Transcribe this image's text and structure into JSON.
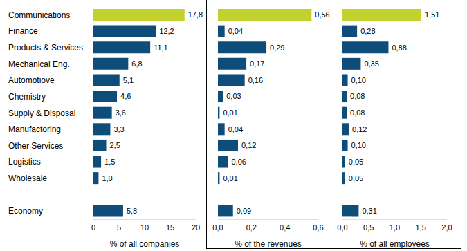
{
  "chart_data": [
    {
      "type": "bar",
      "orientation": "horizontal",
      "data_labels": true,
      "grid": false,
      "x_label": "% of all companies",
      "categories": [
        "Communications",
        "Finance",
        "Products & Services",
        "Mechanical Eng.",
        "Automotiove",
        "Chemistry",
        "Supply & Disposal",
        "Manufactoring",
        "Other Services",
        "Logistics",
        "Wholesale",
        null,
        "Economy"
      ],
      "values": [
        17.8,
        12.2,
        11.1,
        6.8,
        5.1,
        4.6,
        3.6,
        3.3,
        2.5,
        1.5,
        1.0,
        null,
        5.8
      ],
      "value_labels": [
        "17,8",
        "12,2",
        "11,1",
        "6,8",
        "5,1",
        "4,6",
        "3,6",
        "3,3",
        "2,5",
        "1,5",
        "1,0",
        null,
        "5,8"
      ],
      "colors": [
        "#c3d12f",
        "#0e4d7a",
        "#0e4d7a",
        "#0e4d7a",
        "#0e4d7a",
        "#0e4d7a",
        "#0e4d7a",
        "#0e4d7a",
        "#0e4d7a",
        "#0e4d7a",
        "#0e4d7a",
        null,
        "#0e4d7a"
      ],
      "xlim": [
        0,
        20
      ],
      "xticks": [
        0,
        5,
        10,
        15,
        20
      ]
    },
    {
      "type": "bar",
      "orientation": "horizontal",
      "data_labels": true,
      "grid": false,
      "tick_labels": "x",
      "x_label": "% of the revenues",
      "categories": [
        "Communications",
        "Finance",
        "Products & Services",
        "Mechanical Eng.",
        "Automotiove",
        "Chemistry",
        "Supply & Disposal",
        "Manufactoring",
        "Other Services",
        "Logistics",
        "Wholesale",
        null,
        "Economy"
      ],
      "values": [
        0.56,
        0.04,
        0.29,
        0.17,
        0.16,
        0.03,
        0.01,
        0.04,
        0.12,
        0.06,
        0.01,
        null,
        0.09
      ],
      "value_labels": [
        "0,56",
        "0,04",
        "0,29",
        "0,17",
        "0,16",
        "0,03",
        "0,01",
        "0,04",
        "0,12",
        "0,06",
        "0,01",
        null,
        "0,09"
      ],
      "colors": [
        "#c3d12f",
        "#0e4d7a",
        "#0e4d7a",
        "#0e4d7a",
        "#0e4d7a",
        "#0e4d7a",
        "#0e4d7a",
        "#0e4d7a",
        "#0e4d7a",
        "#0e4d7a",
        "#0e4d7a",
        null,
        "#0e4d7a"
      ],
      "xlim": [
        0,
        0.6
      ],
      "xticks": [
        {
          "value": 0,
          "label": "0,0"
        },
        {
          "value": 0.2,
          "label": "0,2"
        },
        {
          "value": 0.4,
          "label": "0,4"
        },
        {
          "value": 0.6,
          "label": "0,6"
        }
      ]
    },
    {
      "type": "bar",
      "orientation": "horizontal",
      "data_labels": true,
      "grid": false,
      "tick_labels": "x",
      "x_label": "% of all employees",
      "categories": [
        "Communications",
        "Finance",
        "Products & Services",
        "Mechanical Eng.",
        "Automotiove",
        "Chemistry",
        "Supply & Disposal",
        "Manufactoring",
        "Other Services",
        "Logistics",
        "Wholesale",
        null,
        "Economy"
      ],
      "values": [
        1.51,
        0.28,
        0.88,
        0.35,
        0.1,
        0.08,
        0.08,
        0.12,
        0.1,
        0.05,
        0.05,
        null,
        0.31
      ],
      "value_labels": [
        "1,51",
        "0,28",
        "0,88",
        "0,35",
        "0,10",
        "0,08",
        "0,08",
        "0,12",
        "0,10",
        "0,05",
        "0,05",
        null,
        "0,31"
      ],
      "colors": [
        "#c3d12f",
        "#0e4d7a",
        "#0e4d7a",
        "#0e4d7a",
        "#0e4d7a",
        "#0e4d7a",
        "#0e4d7a",
        "#0e4d7a",
        "#0e4d7a",
        "#0e4d7a",
        "#0e4d7a",
        null,
        "#0e4d7a"
      ],
      "xlim": [
        0,
        2.0
      ],
      "xticks": [
        {
          "value": 0,
          "label": "0,0"
        },
        {
          "value": 0.5,
          "label": "0,5"
        },
        {
          "value": 1.0,
          "label": "1,0"
        },
        {
          "value": 1.5,
          "label": "1,5"
        },
        {
          "value": 2.0,
          "label": "2,0"
        }
      ]
    }
  ]
}
